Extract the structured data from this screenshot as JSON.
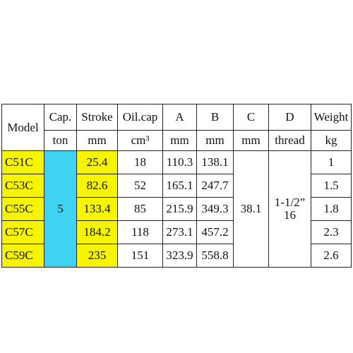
{
  "table": {
    "header": {
      "top": [
        "Model",
        "Cap.",
        "Stroke",
        "Oil.cap",
        "A",
        "B",
        "C",
        "D",
        "Weight"
      ],
      "units": [
        "ton",
        "mm",
        "cm³",
        "mm",
        "mm",
        "mm",
        "thread",
        "kg"
      ]
    },
    "rows": [
      [
        "C51C",
        "25.4",
        "18",
        "110.3",
        "138.1",
        "1"
      ],
      [
        "C53C",
        "82.6",
        "52",
        "165.1",
        "247.7",
        "1.5"
      ],
      [
        "C55C",
        "133.4",
        "85",
        "215.9",
        "349.3",
        "1.8"
      ],
      [
        "C57C",
        "184.2",
        "118",
        "273.1",
        "457.2",
        "2.3"
      ],
      [
        "C59C",
        "235",
        "151",
        "323.9",
        "558.8",
        "2.6"
      ]
    ],
    "capacity": "5",
    "c_value": "38.1",
    "thread": [
      "1-1/2”",
      "16"
    ]
  }
}
